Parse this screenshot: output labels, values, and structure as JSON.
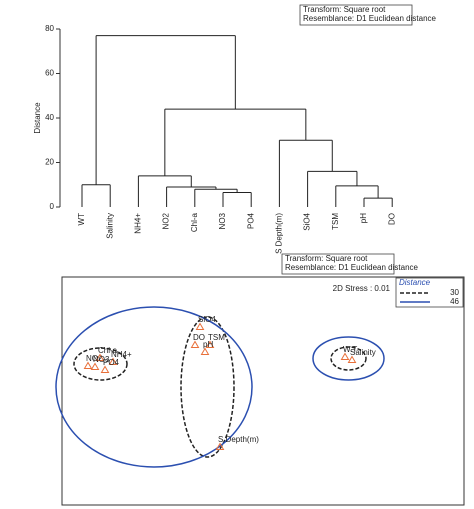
{
  "chart_data": [
    {
      "type": "dendrogram",
      "note_lines": [
        "Transform: Square root",
        "Resemblance: D1 Euclidean distance"
      ],
      "y_label": "Distance",
      "leaves": [
        "WT",
        "Salinity",
        "NH4+",
        "NO2",
        "Chl-a",
        "NO3",
        "PO4",
        "S Depth(m)",
        "SiO4",
        "TSM",
        "pH",
        "DO"
      ],
      "merges": [
        {
          "children": [
            0,
            1
          ],
          "height": 10
        },
        {
          "children": [
            5,
            6
          ],
          "height": 6.5
        },
        {
          "children": [
            4,
            13
          ],
          "height": 8
        },
        {
          "children": [
            3,
            14
          ],
          "height": 9
        },
        {
          "children": [
            2,
            15
          ],
          "height": 14
        },
        {
          "children": [
            10,
            11
          ],
          "height": 4
        },
        {
          "children": [
            9,
            17
          ],
          "height": 9.5
        },
        {
          "children": [
            8,
            18
          ],
          "height": 16
        },
        {
          "children": [
            7,
            19
          ],
          "height": 30
        },
        {
          "children": [
            16,
            20
          ],
          "height": 44
        },
        {
          "children": [
            12,
            21
          ],
          "height": 77
        }
      ],
      "ylim": [
        0,
        80
      ],
      "yticks": [
        0,
        20,
        40,
        60,
        80
      ],
      "color": "#222222"
    },
    {
      "type": "scatter",
      "note_lines": [
        "Transform: Square root",
        "Resemblance: D1 Euclidean distance"
      ],
      "stress": "2D Stress : 0.01",
      "legend_title": "Distance",
      "marker_color": "#e8703a",
      "points": [
        {
          "label": "W.T",
          "x": 0.85,
          "y": 0.33
        },
        {
          "label": "Salinity",
          "x": 0.92,
          "y": 0.3
        },
        {
          "label": "NH4+",
          "x": -1.47,
          "y": 0.28
        },
        {
          "label": "NO2",
          "x": -1.72,
          "y": 0.24
        },
        {
          "label": "Chl-a",
          "x": -1.6,
          "y": 0.32
        },
        {
          "label": "NO3",
          "x": -1.65,
          "y": 0.23
        },
        {
          "label": "PO4",
          "x": -1.55,
          "y": 0.2
        },
        {
          "label": "S Depth(m)",
          "x": -0.4,
          "y": -0.57
        },
        {
          "label": "SiO4",
          "x": -0.6,
          "y": 0.63
        },
        {
          "label": "TSM",
          "x": -0.5,
          "y": 0.45
        },
        {
          "label": "pH",
          "x": -0.55,
          "y": 0.38
        },
        {
          "label": "DO",
          "x": -0.65,
          "y": 0.45
        }
      ],
      "series": [
        {
          "name": "30",
          "color": "#222222",
          "style": "dashed",
          "groups": [
            [
              0,
              1
            ],
            [
              2,
              3,
              4,
              5,
              6
            ],
            [
              7,
              8,
              9,
              10,
              11
            ]
          ]
        },
        {
          "name": "46",
          "color": "#2b4fb0",
          "style": "solid",
          "groups": [
            [
              0,
              1
            ],
            [
              2,
              3,
              4,
              5,
              6,
              7,
              8,
              9,
              10,
              11
            ]
          ]
        }
      ]
    }
  ]
}
